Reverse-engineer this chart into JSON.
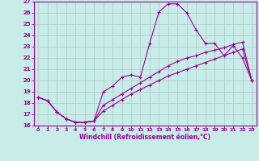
{
  "xlabel": "Windchill (Refroidissement éolien,°C)",
  "background_color": "#c8ece8",
  "grid_color": "#b0c8c4",
  "line_color": "#990099",
  "xlim": [
    -0.5,
    23.5
  ],
  "ylim": [
    16,
    27
  ],
  "xticks": [
    0,
    1,
    2,
    3,
    4,
    5,
    6,
    7,
    8,
    9,
    10,
    11,
    12,
    13,
    14,
    15,
    16,
    17,
    18,
    19,
    20,
    21,
    22,
    23
  ],
  "yticks": [
    16,
    17,
    18,
    19,
    20,
    21,
    22,
    23,
    24,
    25,
    26,
    27
  ],
  "curve1_x": [
    0,
    1,
    2,
    3,
    4,
    5,
    6,
    7,
    8,
    9,
    10,
    11,
    12,
    13,
    14,
    15,
    16,
    17,
    18,
    19,
    20,
    21,
    22,
    23
  ],
  "curve1_y": [
    18.5,
    18.2,
    17.2,
    16.6,
    16.3,
    16.3,
    16.4,
    19.0,
    19.5,
    20.3,
    20.5,
    20.3,
    23.3,
    26.1,
    26.8,
    26.8,
    26.0,
    24.5,
    23.3,
    23.3,
    22.2,
    23.1,
    22.0,
    20.0
  ],
  "curve2_x": [
    0,
    1,
    2,
    3,
    4,
    5,
    6,
    7,
    8,
    9,
    10,
    11,
    12,
    13,
    14,
    15,
    16,
    17,
    18,
    19,
    20,
    21,
    22,
    23
  ],
  "curve2_y": [
    18.5,
    18.2,
    17.2,
    16.6,
    16.3,
    16.3,
    16.4,
    17.8,
    18.3,
    18.8,
    19.3,
    19.8,
    20.3,
    20.8,
    21.3,
    21.7,
    22.0,
    22.2,
    22.5,
    22.7,
    22.9,
    23.2,
    23.4,
    20.0
  ],
  "curve3_x": [
    0,
    1,
    2,
    3,
    4,
    5,
    6,
    7,
    8,
    9,
    10,
    11,
    12,
    13,
    14,
    15,
    16,
    17,
    18,
    19,
    20,
    21,
    22,
    23
  ],
  "curve3_y": [
    18.5,
    18.2,
    17.2,
    16.6,
    16.3,
    16.3,
    16.4,
    17.3,
    17.8,
    18.3,
    18.8,
    19.2,
    19.6,
    20.0,
    20.4,
    20.7,
    21.0,
    21.3,
    21.6,
    21.9,
    22.2,
    22.5,
    22.8,
    20.0
  ]
}
